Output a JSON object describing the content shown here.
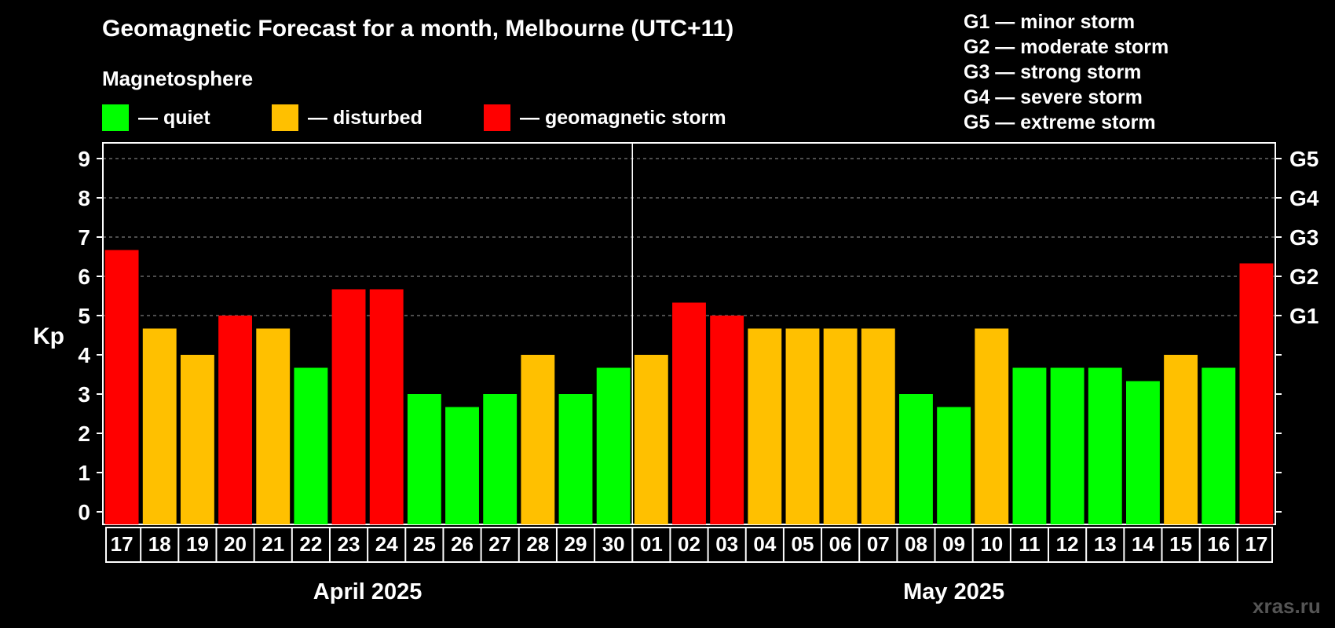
{
  "header": {
    "title": "Geomagnetic Forecast for a month, Melbourne (UTC+11)",
    "legend_title": "Magnetosphere",
    "legend": [
      {
        "label": "— quiet",
        "color": "#00ff00"
      },
      {
        "label": "— disturbed",
        "color": "#ffc000"
      },
      {
        "label": "— geomagnetic storm",
        "color": "#ff0000"
      }
    ],
    "storm_levels": [
      "G1 — minor storm",
      "G2 — moderate storm",
      "G3 — strong storm",
      "G4 — severe storm",
      "G5 — extreme storm"
    ]
  },
  "watermark": "xras.ru",
  "chart_data": {
    "type": "bar",
    "ylabel": "Kp",
    "ylim": [
      0,
      9
    ],
    "yticks": [
      "0",
      "1",
      "2",
      "3",
      "4",
      "5",
      "6",
      "7",
      "8",
      "9"
    ],
    "right_ticks": [
      {
        "kp": 5,
        "label": "G1"
      },
      {
        "kp": 6,
        "label": "G2"
      },
      {
        "kp": 7,
        "label": "G3"
      },
      {
        "kp": 8,
        "label": "G4"
      },
      {
        "kp": 9,
        "label": "G5"
      }
    ],
    "grid": "dashed horizontal at Kp 5–9",
    "months": [
      {
        "label": "April 2025",
        "from": 0,
        "to": 13
      },
      {
        "label": "May 2025",
        "from": 14,
        "to": 30
      }
    ],
    "colors": {
      "quiet": "#00ff00",
      "disturbed": "#ffc000",
      "storm": "#ff0000"
    },
    "categories": [
      "17",
      "18",
      "19",
      "20",
      "21",
      "22",
      "23",
      "24",
      "25",
      "26",
      "27",
      "28",
      "29",
      "30",
      "01",
      "02",
      "03",
      "04",
      "05",
      "06",
      "07",
      "08",
      "09",
      "10",
      "11",
      "12",
      "13",
      "14",
      "15",
      "16",
      "17"
    ],
    "values": [
      6.67,
      4.67,
      4,
      5,
      4.67,
      3.67,
      5.67,
      5.67,
      3,
      2.67,
      3,
      4,
      3,
      3.67,
      4,
      5.33,
      5,
      4.67,
      4.67,
      4.67,
      4.67,
      3,
      2.67,
      4.67,
      3.67,
      3.67,
      3.67,
      3.33,
      4,
      3.67,
      6.33
    ],
    "levels": [
      "storm",
      "disturbed",
      "disturbed",
      "storm",
      "disturbed",
      "quiet",
      "storm",
      "storm",
      "quiet",
      "quiet",
      "quiet",
      "disturbed",
      "quiet",
      "quiet",
      "disturbed",
      "storm",
      "storm",
      "disturbed",
      "disturbed",
      "disturbed",
      "disturbed",
      "quiet",
      "quiet",
      "disturbed",
      "quiet",
      "quiet",
      "quiet",
      "quiet",
      "disturbed",
      "quiet",
      "storm"
    ]
  }
}
